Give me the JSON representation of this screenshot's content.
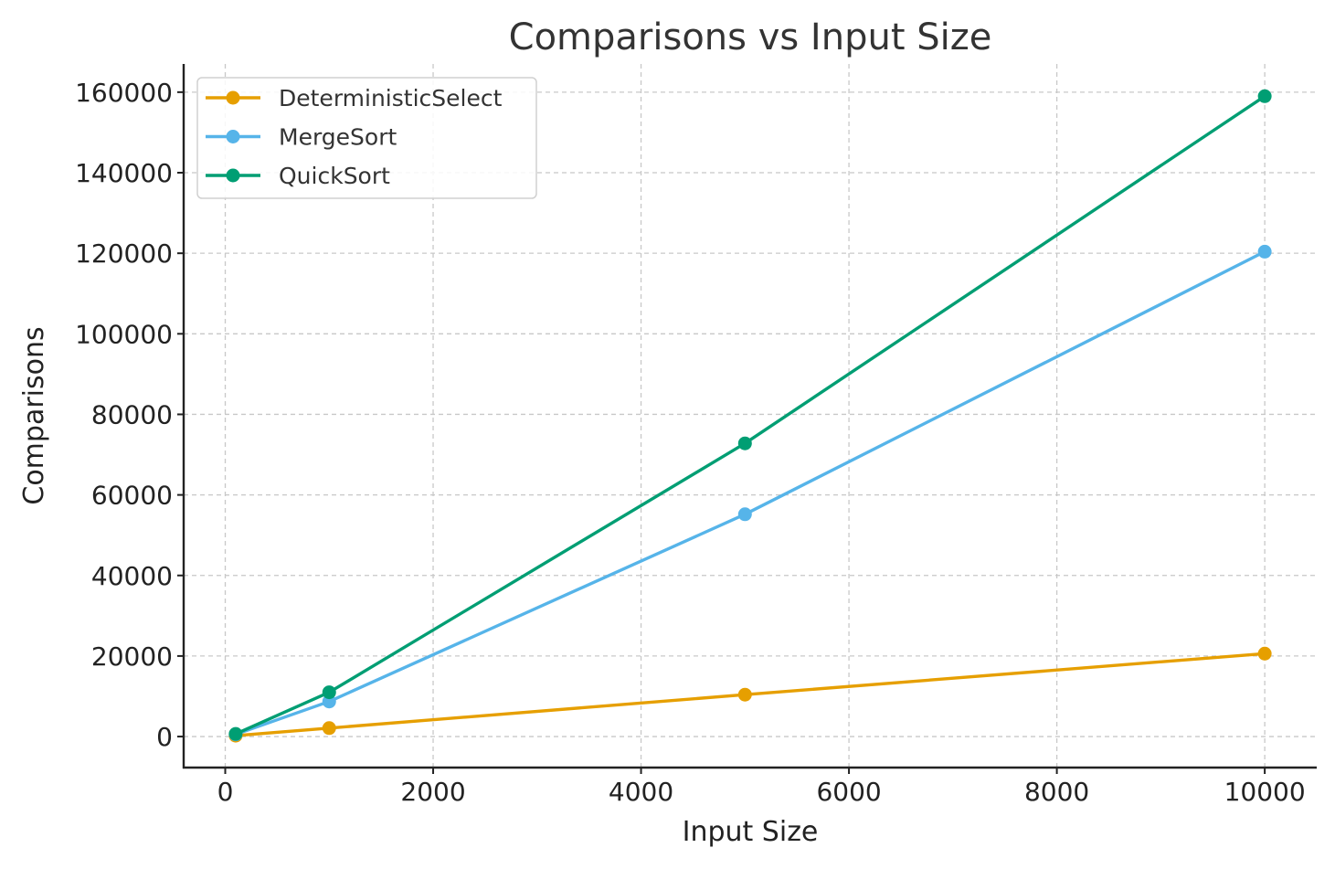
{
  "chart_data": {
    "type": "line",
    "title": "Comparisons vs Input Size",
    "xlabel": "Input Size",
    "ylabel": "Comparisons",
    "x": [
      100,
      1000,
      5000,
      10000
    ],
    "series": [
      {
        "name": "DeterministicSelect",
        "color": "#E69F00",
        "values": [
          220,
          2100,
          10400,
          20600
        ]
      },
      {
        "name": "MergeSort",
        "color": "#56B4E9",
        "values": [
          540,
          8700,
          55200,
          120400
        ]
      },
      {
        "name": "QuickSort",
        "color": "#009E73",
        "values": [
          660,
          11000,
          72800,
          159000
        ]
      }
    ],
    "xlim": [
      -400,
      10500
    ],
    "ylim": [
      -7700,
      167000
    ],
    "xticks": [
      0,
      2000,
      4000,
      6000,
      8000,
      10000
    ],
    "yticks": [
      0,
      20000,
      40000,
      60000,
      80000,
      100000,
      120000,
      140000,
      160000
    ],
    "xtick_labels": [
      "0",
      "2000",
      "4000",
      "6000",
      "8000",
      "10000"
    ],
    "ytick_labels": [
      "0",
      "20000",
      "40000",
      "60000",
      "80000",
      "100000",
      "120000",
      "140000",
      "160000"
    ],
    "grid": true,
    "legend_position": "top-left"
  }
}
